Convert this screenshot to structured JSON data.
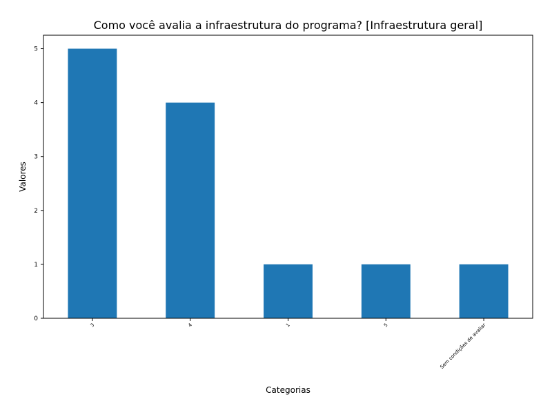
{
  "chart_data": {
    "type": "bar",
    "title": "Como você avalia a infraestrutura do programa? [Infraestrutura geral]",
    "xlabel": "Categorias",
    "ylabel": "Valores",
    "categories": [
      "3",
      "4",
      "1",
      "5",
      "Sem condições de avaliar"
    ],
    "values": [
      5,
      4,
      1,
      1,
      1
    ],
    "ylim": [
      0,
      5.25
    ],
    "yticks": [
      "0",
      "1",
      "2",
      "3",
      "4",
      "5"
    ],
    "bar_color": "#1f77b4",
    "grid": false,
    "legend": "none"
  }
}
